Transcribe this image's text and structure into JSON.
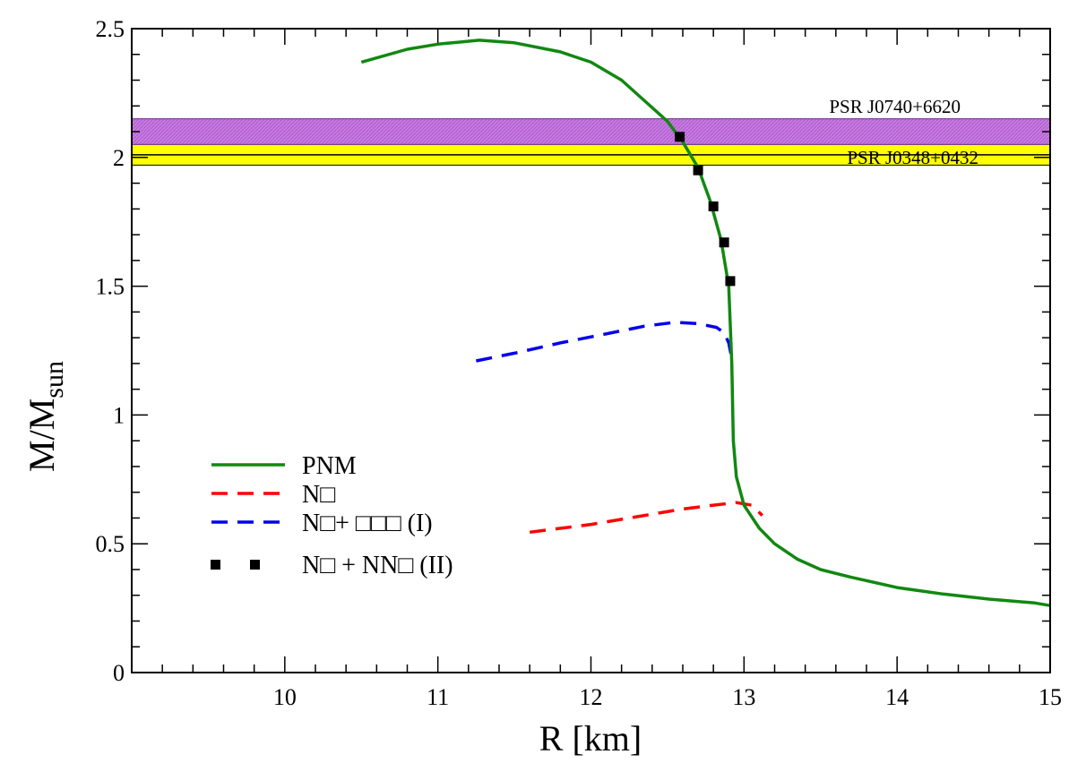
{
  "chart_data": {
    "type": "line",
    "xlabel": "R [km]",
    "ylabel_main": "M/M",
    "ylabel_sub": "sun",
    "xlim": [
      9,
      15
    ],
    "ylim": [
      0,
      2.5
    ],
    "xticks": [
      10,
      11,
      12,
      13,
      14,
      15
    ],
    "xtick_labels": [
      "10",
      "11",
      "12",
      "13",
      "14",
      "15"
    ],
    "yticks": [
      0,
      0.5,
      1,
      1.5,
      2,
      2.5
    ],
    "ytick_labels": [
      "0",
      "0.5",
      "1",
      "1.5",
      "2",
      "2.5"
    ],
    "bands": [
      {
        "name": "PSR J0740+6620",
        "ymin": 2.05,
        "ymax": 2.15,
        "center": null,
        "color": "#c77be0"
      },
      {
        "name": "PSR J0348+0432",
        "ymin": 1.97,
        "ymax": 2.05,
        "center": 2.01,
        "color": "#ffff00"
      }
    ],
    "series": [
      {
        "name": "PNM",
        "style": "solid",
        "color": "#118811",
        "x": [
          10.5,
          10.8,
          11.0,
          11.27,
          11.5,
          11.8,
          12.0,
          12.2,
          12.35,
          12.5,
          12.6,
          12.7,
          12.78,
          12.85,
          12.9,
          12.92,
          12.93,
          12.95,
          13.0,
          13.1,
          13.2,
          13.35,
          13.5,
          13.7,
          14.0,
          14.3,
          14.6,
          14.9,
          15.0
        ],
        "y": [
          2.37,
          2.42,
          2.44,
          2.455,
          2.445,
          2.41,
          2.37,
          2.3,
          2.22,
          2.14,
          2.06,
          1.96,
          1.83,
          1.68,
          1.5,
          1.2,
          0.9,
          0.76,
          0.65,
          0.56,
          0.5,
          0.44,
          0.4,
          0.37,
          0.33,
          0.305,
          0.285,
          0.27,
          0.26
        ]
      },
      {
        "name": "N□",
        "style": "dashed",
        "color": "#ff0000",
        "x": [
          11.6,
          12.0,
          12.3,
          12.6,
          12.8,
          12.95,
          13.05,
          13.12
        ],
        "y": [
          0.545,
          0.575,
          0.605,
          0.635,
          0.65,
          0.66,
          0.65,
          0.61
        ]
      },
      {
        "name": "N□+ □□□ (I)",
        "style": "dashed",
        "color": "#0000ee",
        "x": [
          11.25,
          11.5,
          11.8,
          12.1,
          12.35,
          12.55,
          12.7,
          12.82,
          12.87,
          12.9,
          12.92
        ],
        "y": [
          1.21,
          1.24,
          1.28,
          1.315,
          1.345,
          1.36,
          1.355,
          1.34,
          1.32,
          1.28,
          1.22
        ]
      },
      {
        "name": "N□ + NN□ (II)",
        "style": "markers",
        "color": "#000000",
        "x": [
          12.58,
          12.7,
          12.8,
          12.87,
          12.91
        ],
        "y": [
          2.08,
          1.95,
          1.81,
          1.67,
          1.52
        ]
      }
    ]
  }
}
